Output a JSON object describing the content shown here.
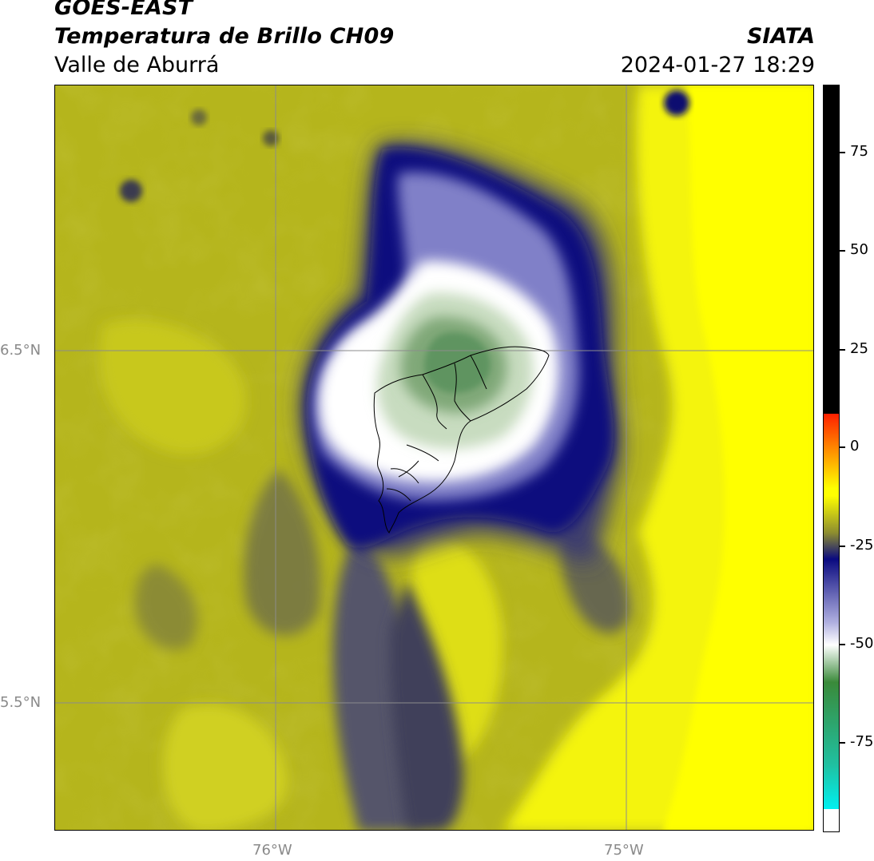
{
  "header": {
    "satellite": "GOES-EAST",
    "product": "Temperatura de Brillo CH09",
    "region": "Valle de Aburrá",
    "agency": "SIATA",
    "datetime": "2024-01-27 18:29"
  },
  "map": {
    "lat_labels": [
      "6.5°N",
      "5.5°N"
    ],
    "lon_labels": [
      "76°W",
      "75°W"
    ],
    "colors": {
      "warm_yellow": "#ffff00",
      "olive": "#b3b31a",
      "dark_olive": "#5a5a3a",
      "navy": "#10107e",
      "white_core": "#ffffff",
      "green_core": "#5a9a5a",
      "grid": "#8c8c8c",
      "boundary": "#000000"
    }
  },
  "colorbar": {
    "labels": [
      "75",
      "50",
      "25",
      "0",
      "-25",
      "-50",
      "-75"
    ],
    "colors": {
      "black": "#000000",
      "red": "#ff2000",
      "orange": "#ff9000",
      "yellow": "#ffff00",
      "olive": "#8c8c30",
      "navy": "#0a0a80",
      "lavender": "#b0b0e0",
      "white": "#ffffff",
      "green": "#3a8a3a",
      "teal": "#20c0a0",
      "cyan": "#00f0f0"
    }
  }
}
